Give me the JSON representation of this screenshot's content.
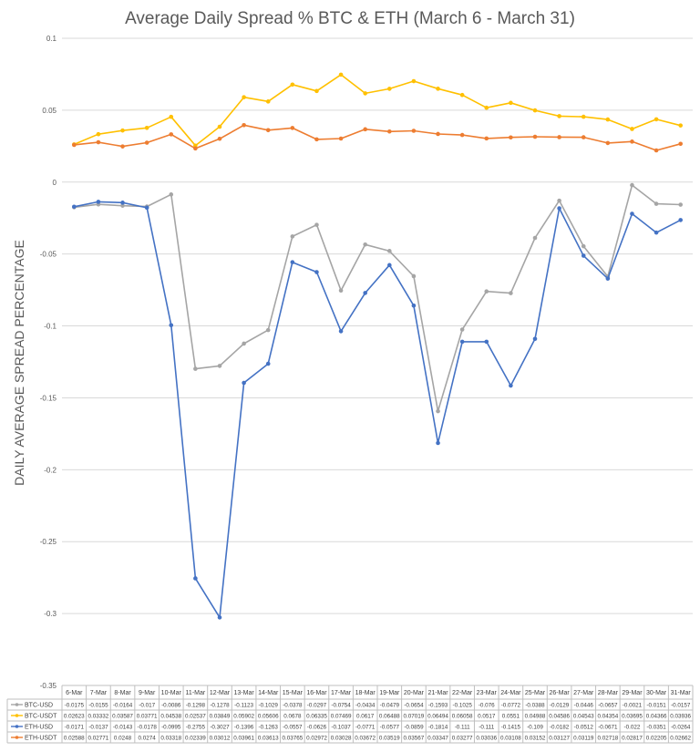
{
  "chart_data": {
    "type": "line",
    "title": "Average Daily Spread % BTC & ETH (March 6 - March 31)",
    "xlabel": "",
    "ylabel": "DAILY AVERAGE SPREAD PERCENTAGE",
    "ylim": [
      -0.35,
      0.1
    ],
    "yticks": [
      "0.1",
      "0.05",
      "0",
      "-0.05",
      "-0.1",
      "-0.15",
      "-0.2",
      "-0.25",
      "-0.3",
      "-0.35"
    ],
    "ytick_values": [
      0.1,
      0.05,
      0,
      -0.05,
      -0.1,
      -0.15,
      -0.2,
      -0.25,
      -0.3,
      -0.35
    ],
    "grid": true,
    "legend": "data-table-bottom",
    "categories": [
      "6-Mar",
      "7-Mar",
      "8-Mar",
      "9-Mar",
      "10-Mar",
      "11-Mar",
      "12-Mar",
      "13-Mar",
      "14-Mar",
      "15-Mar",
      "16-Mar",
      "17-Mar",
      "18-Mar",
      "19-Mar",
      "20-Mar",
      "21-Mar",
      "22-Mar",
      "23-Mar",
      "24-Mar",
      "25-Mar",
      "26-Mar",
      "27-Mar",
      "28-Mar",
      "29-Mar",
      "30-Mar",
      "31-Mar"
    ],
    "series": [
      {
        "name": "BTC-USD",
        "color": "#a5a5a5",
        "labels": [
          "-0.0175",
          "-0.0155",
          "-0.0164",
          "-0.017",
          "-0.0086",
          "-0.1298",
          "-0.1278",
          "-0.1123",
          "-0.1029",
          "-0.0378",
          "-0.0297",
          "-0.0754",
          "-0.0434",
          "-0.0479",
          "-0.0654",
          "-0.1593",
          "-0.1025",
          "-0.076",
          "-0.0772",
          "-0.0388",
          "-0.0129",
          "-0.0446",
          "-0.0657",
          "-0.0021",
          "-0.0151",
          "-0.0157"
        ],
        "values": [
          -0.0175,
          -0.0155,
          -0.0164,
          -0.017,
          -0.0086,
          -0.1298,
          -0.1278,
          -0.1123,
          -0.1029,
          -0.0378,
          -0.0297,
          -0.0754,
          -0.0434,
          -0.0479,
          -0.0654,
          -0.1593,
          -0.1025,
          -0.076,
          -0.0772,
          -0.0388,
          -0.0129,
          -0.0446,
          -0.0657,
          -0.0021,
          -0.0151,
          -0.0157
        ]
      },
      {
        "name": "BTC-USDT",
        "color": "#ffc000",
        "labels": [
          "0.02623",
          "0.03332",
          "0.03587",
          "0.03771",
          "0.04538",
          "0.02537",
          "0.03849",
          "0.05902",
          "0.05606",
          "0.0678",
          "0.06335",
          "0.07469",
          "0.0617",
          "0.06488",
          "0.07019",
          "0.06494",
          "0.06058",
          "0.0517",
          "0.0551",
          "0.04988",
          "0.04586",
          "0.04543",
          "0.04354",
          "0.03695",
          "0.04366",
          "0.03936"
        ],
        "values": [
          0.02623,
          0.03332,
          0.03587,
          0.03771,
          0.04538,
          0.02537,
          0.03849,
          0.05902,
          0.05606,
          0.0678,
          0.06335,
          0.07469,
          0.0617,
          0.06488,
          0.07019,
          0.06494,
          0.06058,
          0.0517,
          0.0551,
          0.04988,
          0.04586,
          0.04543,
          0.04354,
          0.03695,
          0.04366,
          0.03936
        ]
      },
      {
        "name": "ETH-USD",
        "color": "#4472c4",
        "labels": [
          "-0.0171",
          "-0.0137",
          "-0.0143",
          "-0.0178",
          "-0.0995",
          "-0.2755",
          "-0.3027",
          "-0.1396",
          "-0.1263",
          "-0.0557",
          "-0.0626",
          "-0.1037",
          "-0.0771",
          "-0.0577",
          "-0.0859",
          "-0.1814",
          "-0.111",
          "-0.111",
          "-0.1415",
          "-0.109",
          "-0.0182",
          "-0.0512",
          "-0.0671",
          "-0.022",
          "-0.0351",
          "-0.0264"
        ],
        "values": [
          -0.0171,
          -0.0137,
          -0.0143,
          -0.0178,
          -0.0995,
          -0.2755,
          -0.3027,
          -0.1396,
          -0.1263,
          -0.0557,
          -0.0626,
          -0.1037,
          -0.0771,
          -0.0577,
          -0.0859,
          -0.1814,
          -0.111,
          -0.111,
          -0.1415,
          -0.109,
          -0.0182,
          -0.0512,
          -0.0671,
          -0.022,
          -0.0351,
          -0.0264
        ]
      },
      {
        "name": "ETH-USDT",
        "color": "#ed7d31",
        "labels": [
          "0.02588",
          "0.02771",
          "0.0248",
          "0.0274",
          "0.03318",
          "0.02339",
          "0.03012",
          "0.03961",
          "0.03613",
          "0.03765",
          "0.02972",
          "0.03028",
          "0.03672",
          "0.03519",
          "0.03567",
          "0.03347",
          "0.03277",
          "0.03036",
          "0.03108",
          "0.03152",
          "0.03127",
          "0.03119",
          "0.02718",
          "0.02817",
          "0.02205",
          "0.02662"
        ],
        "values": [
          0.02588,
          0.02771,
          0.0248,
          0.0274,
          0.03318,
          0.02339,
          0.03012,
          0.03961,
          0.03613,
          0.03765,
          0.02972,
          0.03028,
          0.03672,
          0.03519,
          0.03567,
          0.03347,
          0.03277,
          0.03036,
          0.03108,
          0.03152,
          0.03127,
          0.03119,
          0.02718,
          0.02817,
          0.02205,
          0.02662
        ]
      }
    ]
  }
}
